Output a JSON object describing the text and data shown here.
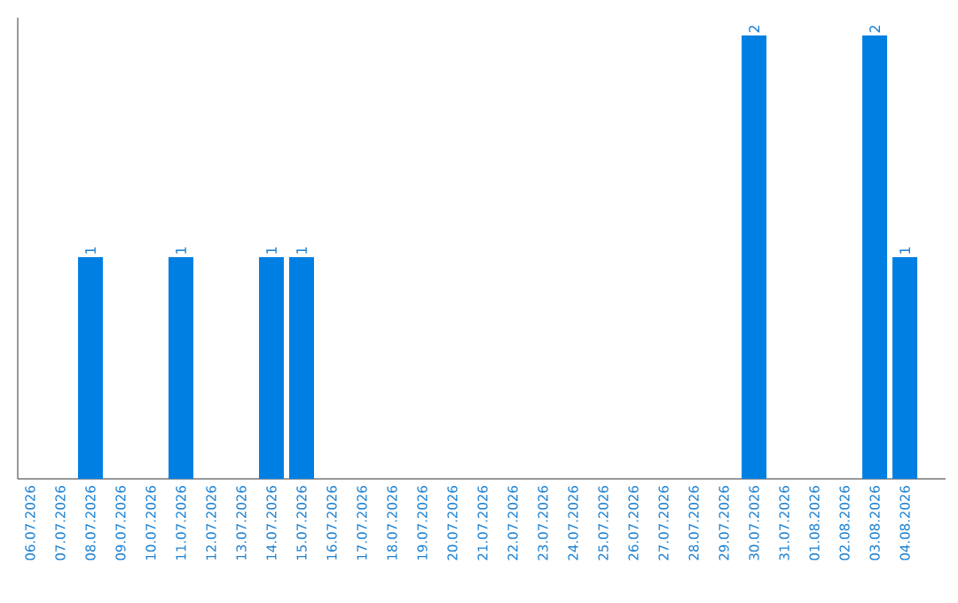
{
  "chart_data": {
    "type": "bar",
    "categories": [
      "06.07.2026",
      "07.07.2026",
      "08.07.2026",
      "09.07.2026",
      "10.07.2026",
      "11.07.2026",
      "12.07.2026",
      "13.07.2026",
      "14.07.2026",
      "15.07.2026",
      "16.07.2026",
      "17.07.2026",
      "18.07.2026",
      "19.07.2026",
      "20.07.2026",
      "21.07.2026",
      "22.07.2026",
      "23.07.2026",
      "24.07.2026",
      "25.07.2026",
      "26.07.2026",
      "27.07.2026",
      "28.07.2026",
      "29.07.2026",
      "30.07.2026",
      "31.07.2026",
      "01.08.2026",
      "02.08.2026",
      "03.08.2026",
      "04.08.2026"
    ],
    "values": [
      0,
      0,
      1,
      0,
      0,
      1,
      0,
      0,
      1,
      1,
      0,
      0,
      0,
      0,
      0,
      0,
      0,
      0,
      0,
      0,
      0,
      0,
      0,
      0,
      2,
      0,
      0,
      0,
      2,
      1
    ],
    "value_labels": [
      null,
      null,
      "1",
      null,
      null,
      "1",
      null,
      null,
      "1",
      "1",
      null,
      null,
      null,
      null,
      null,
      null,
      null,
      null,
      null,
      null,
      null,
      null,
      null,
      null,
      "2",
      null,
      null,
      null,
      "2",
      "1"
    ],
    "color": "#007fe3",
    "tick_labels": "x"
  }
}
